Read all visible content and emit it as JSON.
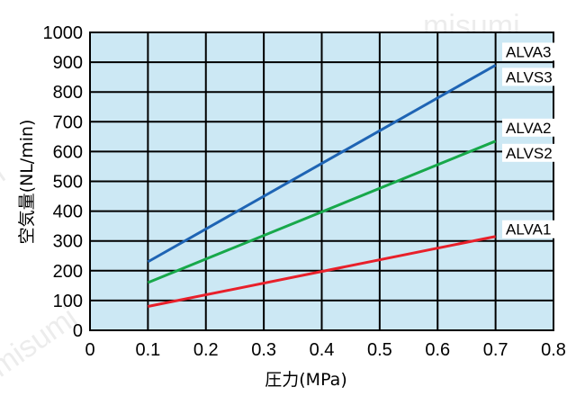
{
  "watermark": "misumi",
  "colors": {
    "plot_background": "#cce8f4",
    "grid": "#000000",
    "ALVA3/ALVS3": "#1e64b4",
    "ALVA2/ALVS2": "#17a84a",
    "ALVA1": "#e8202a"
  },
  "chart_data": {
    "type": "line",
    "xlabel": "圧力(MPa)",
    "ylabel": "空気量(NL/min)",
    "xlim": [
      0,
      0.8
    ],
    "ylim": [
      0,
      1000
    ],
    "x_ticks": [
      "0",
      "0.1",
      "0.2",
      "0.3",
      "0.4",
      "0.5",
      "0.6",
      "0.7",
      "0.8"
    ],
    "y_ticks": [
      "0",
      "100",
      "200",
      "300",
      "400",
      "500",
      "600",
      "700",
      "800",
      "900",
      "1000"
    ],
    "grid": true,
    "series": [
      {
        "name": "ALVA3/ALVS3",
        "labels": [
          "ALVA3",
          "ALVS3"
        ],
        "color": "#1e64b4",
        "x": [
          0.1,
          0.7
        ],
        "y": [
          230,
          890
        ]
      },
      {
        "name": "ALVA2/ALVS2",
        "labels": [
          "ALVA2",
          "ALVS2"
        ],
        "color": "#17a84a",
        "x": [
          0.1,
          0.7
        ],
        "y": [
          160,
          635
        ]
      },
      {
        "name": "ALVA1",
        "labels": [
          "ALVA1"
        ],
        "color": "#e8202a",
        "x": [
          0.1,
          0.7
        ],
        "y": [
          80,
          315
        ]
      }
    ]
  }
}
